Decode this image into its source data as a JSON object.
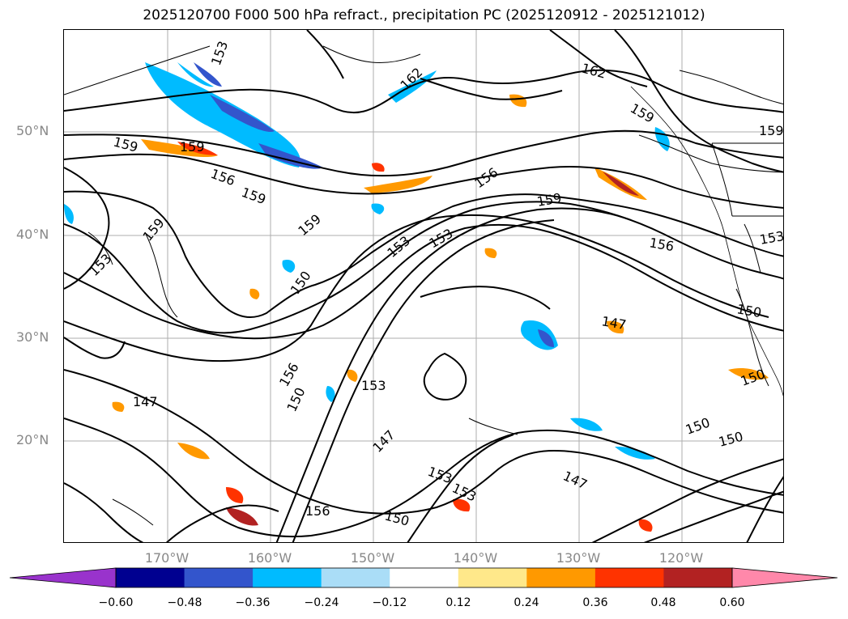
{
  "title": "2025120700 F000 500 hPa refract., precipitation PC (2025120912 - 2025121012)",
  "map": {
    "lat_labels": [
      "50°N",
      "40°N",
      "30°N",
      "20°N"
    ],
    "lon_labels": [
      "170°W",
      "160°W",
      "150°W",
      "140°W",
      "130°W",
      "120°W"
    ],
    "contour_labels": [
      "153",
      "159",
      "159",
      "156",
      "159",
      "159",
      "162",
      "162",
      "159",
      "159",
      "156",
      "159",
      "153",
      "153",
      "156",
      "153",
      "150",
      "150",
      "147",
      "156",
      "150",
      "153",
      "147",
      "147",
      "153",
      "150",
      "156",
      "153",
      "153",
      "150",
      "150",
      "150",
      "147",
      "159"
    ]
  },
  "colorbar": {
    "ticks": [
      "−0.60",
      "−0.48",
      "−0.36",
      "−0.24",
      "−0.12",
      "0.12",
      "0.24",
      "0.36",
      "0.48",
      "0.60"
    ],
    "colors": [
      "#9933cc",
      "#000090",
      "#3355cc",
      "#00bbff",
      "#aaddf7",
      "#ffffff",
      "#ffe88a",
      "#ff9900",
      "#ff3300",
      "#b22222",
      "#ff88aa"
    ]
  }
}
